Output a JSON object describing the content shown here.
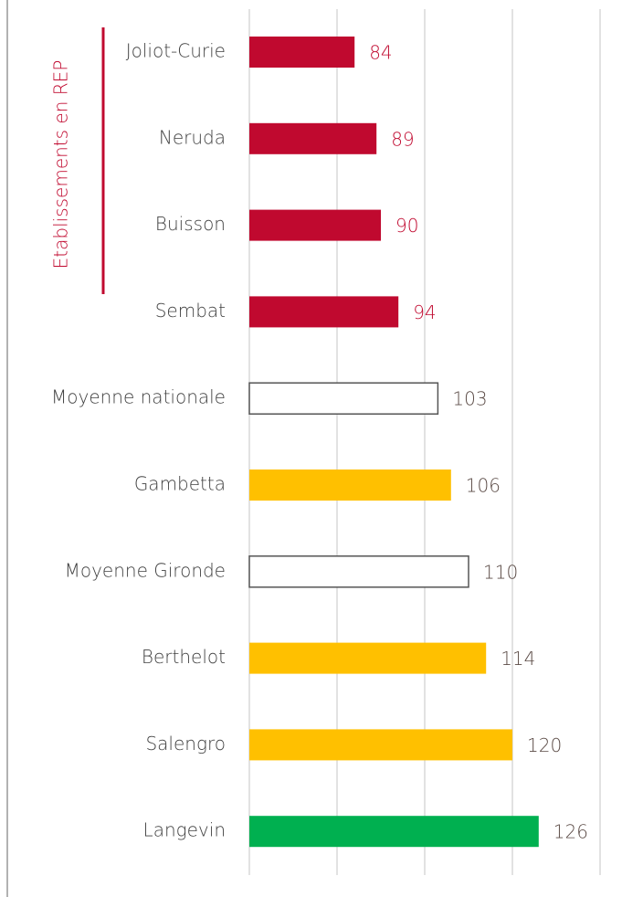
{
  "chart_data": {
    "type": "bar",
    "orientation": "horizontal",
    "categories": [
      "Joliot-Curie",
      "Neruda",
      "Buisson",
      "Sembat",
      "Moyenne nationale",
      "Gambetta",
      "Moyenne Gironde",
      "Berthelot",
      "Salengro",
      "Langevin"
    ],
    "values": [
      84,
      89,
      90,
      94,
      103,
      106,
      110,
      114,
      120,
      126
    ],
    "colors": [
      "#c0092f",
      "#c0092f",
      "#c0092f",
      "#c0092f",
      "#ffffff",
      "#ffc000",
      "#ffffff",
      "#ffc000",
      "#ffc000",
      "#00b050"
    ],
    "outlined": [
      false,
      false,
      false,
      false,
      true,
      false,
      true,
      false,
      false,
      false
    ],
    "value_label_colors": [
      "#c0092f",
      "#c0092f",
      "#c0092f",
      "#c0092f",
      "#5a4a45",
      "#5a4a45",
      "#5a4a45",
      "#5a4a45",
      "#5a4a45",
      "#5a4a45"
    ],
    "annotation": "Etablissements en REP",
    "annotation_color": "#c0092f",
    "xlim": [
      60,
      140
    ],
    "xticks": [
      60,
      80,
      100,
      120,
      140
    ],
    "grid": true
  }
}
